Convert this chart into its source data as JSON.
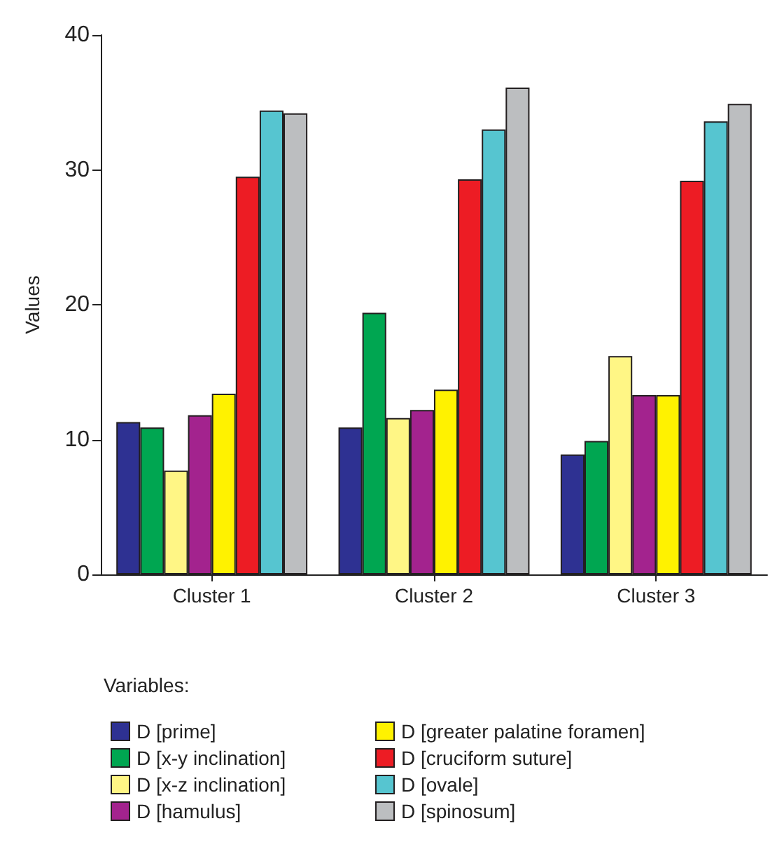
{
  "chart_data": {
    "type": "bar",
    "ylabel": "Values",
    "legend_title": "Variables:",
    "legend": "bottom",
    "grid": false,
    "categories": [
      "Cluster 1",
      "Cluster 2",
      "Cluster 3"
    ],
    "ylim": [
      0,
      40
    ],
    "yticks": [
      0,
      10,
      20,
      30,
      40
    ],
    "series": [
      {
        "name": "D [prime]",
        "color": "#2e3192",
        "values": [
          11.3,
          10.9,
          8.9
        ]
      },
      {
        "name": "D [x-y inclination]",
        "color": "#00a651",
        "values": [
          10.9,
          19.4,
          9.9
        ]
      },
      {
        "name": "D [x-z inclination]",
        "color": "#fff685",
        "values": [
          7.7,
          11.6,
          16.2
        ]
      },
      {
        "name": "D [hamulus]",
        "color": "#a3238e",
        "values": [
          11.8,
          12.2,
          13.3
        ]
      },
      {
        "name": "D [greater palatine foramen]",
        "color": "#fff200",
        "values": [
          13.4,
          13.7,
          13.3
        ]
      },
      {
        "name": "D [cruciform suture]",
        "color": "#ed1c24",
        "values": [
          29.5,
          29.3,
          29.2
        ]
      },
      {
        "name": "D [ovale]",
        "color": "#56c5d0",
        "values": [
          34.4,
          33.0,
          33.6
        ]
      },
      {
        "name": "D [spinosum]",
        "color": "#bcbec0",
        "values": [
          34.2,
          36.1,
          34.9
        ]
      }
    ]
  }
}
